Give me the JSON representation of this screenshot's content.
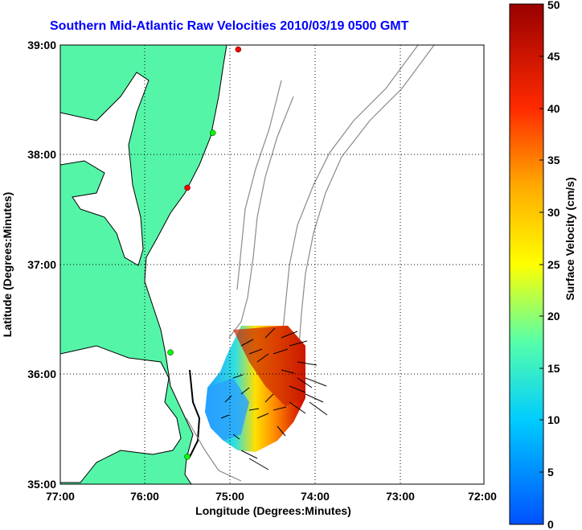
{
  "title": "Southern Mid-Atlantic Raw Velocities 2010/03/19 0500 GMT",
  "map": {
    "xlabel": "Longitude (Degrees:Minutes)",
    "ylabel": "Latitude (Degrees:Minutes)",
    "x_ticks": [
      "77:00",
      "76:00",
      "75:00",
      "74:00",
      "73:00",
      "72:00"
    ],
    "y_ticks": [
      "39:00",
      "38:00",
      "37:00",
      "36:00",
      "35:00"
    ],
    "lon_range": [
      -77,
      -72
    ],
    "lat_range": [
      35,
      39
    ],
    "grid": "dotted",
    "land_color": "#55f5a8",
    "coast_color": "#000000",
    "bathymetry_color": "#8a8a8a",
    "stations": [
      {
        "lon": -74.9,
        "lat": 38.96,
        "color": "#ff0000"
      },
      {
        "lon": -75.5,
        "lat": 37.7,
        "color": "#ff0000"
      },
      {
        "lon": -75.2,
        "lat": 38.2,
        "color": "#00ff00"
      },
      {
        "lon": -75.7,
        "lat": 36.2,
        "color": "#00ff00"
      },
      {
        "lon": -75.5,
        "lat": 35.25,
        "color": "#00ff00"
      }
    ]
  },
  "colorbar": {
    "label": "Surface Velocity (cm/s)",
    "ticks": [
      "50",
      "45",
      "40",
      "35",
      "30",
      "25",
      "20",
      "15",
      "10",
      "5",
      "0"
    ],
    "range": [
      0,
      50
    ],
    "colormap": "jet"
  }
}
